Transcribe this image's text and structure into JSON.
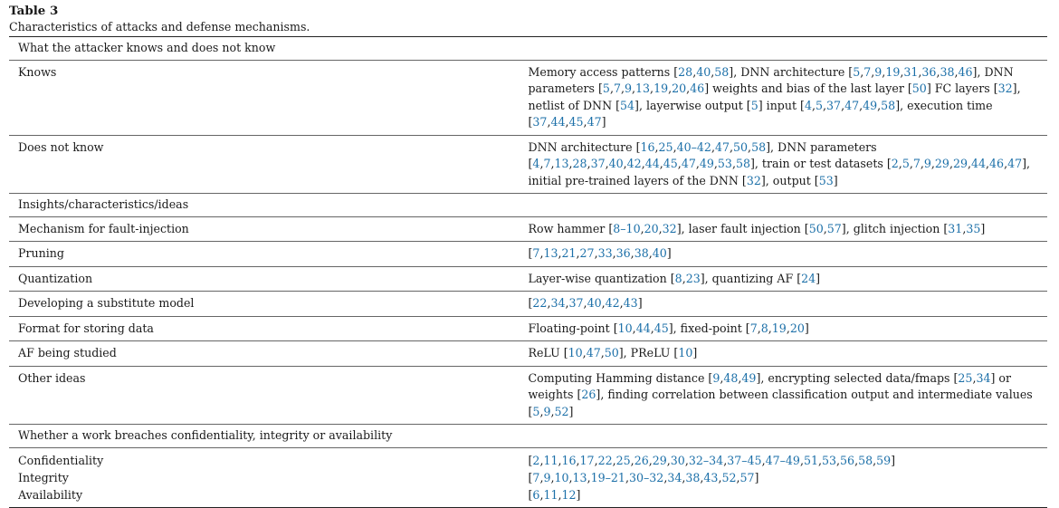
{
  "caption": {
    "title": "Table 3",
    "text": "Characteristics of attacks and defense mechanisms."
  },
  "colors": {
    "text": "#1a1a1a",
    "citation": "#1b6fa8",
    "rule": "#222222"
  },
  "sections": {
    "knowledge_header": "What the attacker knows and does not know",
    "insights_header": "Insights/characteristics/ideas",
    "breach_header": "Whether a work breaches confidentiality, integrity or availability"
  },
  "rows": [
    {
      "label": "Knows",
      "parts": [
        {
          "t": "Memory access patterns ["
        },
        {
          "r": "28"
        },
        {
          "t": ","
        },
        {
          "r": "40"
        },
        {
          "t": ","
        },
        {
          "r": "58"
        },
        {
          "t": "], DNN architecture ["
        },
        {
          "r": "5"
        },
        {
          "t": ","
        },
        {
          "r": "7"
        },
        {
          "t": ","
        },
        {
          "r": "9"
        },
        {
          "t": ","
        },
        {
          "r": "19"
        },
        {
          "t": ","
        },
        {
          "r": "31"
        },
        {
          "t": ","
        },
        {
          "r": "36"
        },
        {
          "t": ","
        },
        {
          "r": "38"
        },
        {
          "t": ","
        },
        {
          "r": "46"
        },
        {
          "t": "], DNN parameters ["
        },
        {
          "r": "5"
        },
        {
          "t": ","
        },
        {
          "r": "7"
        },
        {
          "t": ","
        },
        {
          "r": "9"
        },
        {
          "t": ","
        },
        {
          "r": "13"
        },
        {
          "t": ","
        },
        {
          "r": "19"
        },
        {
          "t": ","
        },
        {
          "r": "20"
        },
        {
          "t": ","
        },
        {
          "r": "46"
        },
        {
          "t": "] weights and bias of the last layer ["
        },
        {
          "r": "50"
        },
        {
          "t": "] FC layers ["
        },
        {
          "r": "32"
        },
        {
          "t": "], netlist of DNN ["
        },
        {
          "r": "54"
        },
        {
          "t": "], layerwise output ["
        },
        {
          "r": "5"
        },
        {
          "t": "] input ["
        },
        {
          "r": "4"
        },
        {
          "t": ","
        },
        {
          "r": "5"
        },
        {
          "t": ","
        },
        {
          "r": "37"
        },
        {
          "t": ","
        },
        {
          "r": "47"
        },
        {
          "t": ","
        },
        {
          "r": "49"
        },
        {
          "t": ","
        },
        {
          "r": "58"
        },
        {
          "t": "], execution time ["
        },
        {
          "r": "37"
        },
        {
          "t": ","
        },
        {
          "r": "44"
        },
        {
          "t": ","
        },
        {
          "r": "45"
        },
        {
          "t": ","
        },
        {
          "r": "47"
        },
        {
          "t": "]"
        }
      ]
    },
    {
      "label": "Does not know",
      "parts": [
        {
          "t": "DNN architecture ["
        },
        {
          "r": "16"
        },
        {
          "t": ","
        },
        {
          "r": "25"
        },
        {
          "t": ","
        },
        {
          "r": "40–42"
        },
        {
          "t": ","
        },
        {
          "r": "47"
        },
        {
          "t": ","
        },
        {
          "r": "50"
        },
        {
          "t": ","
        },
        {
          "r": "58"
        },
        {
          "t": "], DNN parameters ["
        },
        {
          "r": "4"
        },
        {
          "t": ","
        },
        {
          "r": "7"
        },
        {
          "t": ","
        },
        {
          "r": "13"
        },
        {
          "t": ","
        },
        {
          "r": "28"
        },
        {
          "t": ","
        },
        {
          "r": "37"
        },
        {
          "t": ","
        },
        {
          "r": "40"
        },
        {
          "t": ","
        },
        {
          "r": "42"
        },
        {
          "t": ","
        },
        {
          "r": "44"
        },
        {
          "t": ","
        },
        {
          "r": "45"
        },
        {
          "t": ","
        },
        {
          "r": "47"
        },
        {
          "t": ","
        },
        {
          "r": "49"
        },
        {
          "t": ","
        },
        {
          "r": "53"
        },
        {
          "t": ","
        },
        {
          "r": "58"
        },
        {
          "t": "], train or test datasets ["
        },
        {
          "r": "2"
        },
        {
          "t": ","
        },
        {
          "r": "5"
        },
        {
          "t": ","
        },
        {
          "r": "7"
        },
        {
          "t": ","
        },
        {
          "r": "9"
        },
        {
          "t": ","
        },
        {
          "r": "29"
        },
        {
          "t": ","
        },
        {
          "r": "29"
        },
        {
          "t": ","
        },
        {
          "r": "44"
        },
        {
          "t": ","
        },
        {
          "r": "46"
        },
        {
          "t": ","
        },
        {
          "r": "47"
        },
        {
          "t": "], initial pre-trained layers of the DNN ["
        },
        {
          "r": "32"
        },
        {
          "t": "], output ["
        },
        {
          "r": "53"
        },
        {
          "t": "]"
        }
      ]
    },
    {
      "label": "Mechanism for fault-injection",
      "parts": [
        {
          "t": "Row hammer ["
        },
        {
          "r": "8–10"
        },
        {
          "t": ","
        },
        {
          "r": "20"
        },
        {
          "t": ","
        },
        {
          "r": "32"
        },
        {
          "t": "], laser fault injection ["
        },
        {
          "r": "50"
        },
        {
          "t": ","
        },
        {
          "r": "57"
        },
        {
          "t": "], glitch injection ["
        },
        {
          "r": "31"
        },
        {
          "t": ","
        },
        {
          "r": "35"
        },
        {
          "t": "]"
        }
      ]
    },
    {
      "label": "Pruning",
      "parts": [
        {
          "t": "["
        },
        {
          "r": "7"
        },
        {
          "t": ","
        },
        {
          "r": "13"
        },
        {
          "t": ","
        },
        {
          "r": "21"
        },
        {
          "t": ","
        },
        {
          "r": "27"
        },
        {
          "t": ","
        },
        {
          "r": "33"
        },
        {
          "t": ","
        },
        {
          "r": "36"
        },
        {
          "t": ","
        },
        {
          "r": "38"
        },
        {
          "t": ","
        },
        {
          "r": "40"
        },
        {
          "t": "]"
        }
      ]
    },
    {
      "label": "Quantization",
      "parts": [
        {
          "t": "Layer-wise quantization ["
        },
        {
          "r": "8"
        },
        {
          "t": ","
        },
        {
          "r": "23"
        },
        {
          "t": "], quantizing AF ["
        },
        {
          "r": "24"
        },
        {
          "t": "]"
        }
      ]
    },
    {
      "label": "Developing a substitute model",
      "parts": [
        {
          "t": "["
        },
        {
          "r": "22"
        },
        {
          "t": ","
        },
        {
          "r": "34"
        },
        {
          "t": ","
        },
        {
          "r": "37"
        },
        {
          "t": ","
        },
        {
          "r": "40"
        },
        {
          "t": ","
        },
        {
          "r": "42"
        },
        {
          "t": ","
        },
        {
          "r": "43"
        },
        {
          "t": "]"
        }
      ]
    },
    {
      "label": "Format for storing data",
      "parts": [
        {
          "t": "Floating-point ["
        },
        {
          "r": "10"
        },
        {
          "t": ","
        },
        {
          "r": "44"
        },
        {
          "t": ","
        },
        {
          "r": "45"
        },
        {
          "t": "], fixed-point ["
        },
        {
          "r": "7"
        },
        {
          "t": ","
        },
        {
          "r": "8"
        },
        {
          "t": ","
        },
        {
          "r": "19"
        },
        {
          "t": ","
        },
        {
          "r": "20"
        },
        {
          "t": "]"
        }
      ]
    },
    {
      "label": "AF being studied",
      "parts": [
        {
          "t": "ReLU ["
        },
        {
          "r": "10"
        },
        {
          "t": ","
        },
        {
          "r": "47"
        },
        {
          "t": ","
        },
        {
          "r": "50"
        },
        {
          "t": "], PReLU ["
        },
        {
          "r": "10"
        },
        {
          "t": "]"
        }
      ]
    },
    {
      "label": "Other ideas",
      "parts": [
        {
          "t": "Computing Hamming distance ["
        },
        {
          "r": "9"
        },
        {
          "t": ","
        },
        {
          "r": "48"
        },
        {
          "t": ","
        },
        {
          "r": "49"
        },
        {
          "t": "], encrypting selected data/fmaps ["
        },
        {
          "r": "25"
        },
        {
          "t": ","
        },
        {
          "r": "34"
        },
        {
          "t": "] or weights ["
        },
        {
          "r": "26"
        },
        {
          "t": "], finding correlation between classification output and intermediate values ["
        },
        {
          "r": "5"
        },
        {
          "t": ","
        },
        {
          "r": "9"
        },
        {
          "t": ","
        },
        {
          "r": "52"
        },
        {
          "t": "]"
        }
      ]
    },
    {
      "label": "Confidentiality",
      "parts": [
        {
          "t": "["
        },
        {
          "r": "2"
        },
        {
          "t": ","
        },
        {
          "r": "11"
        },
        {
          "t": ","
        },
        {
          "r": "16"
        },
        {
          "t": ","
        },
        {
          "r": "17"
        },
        {
          "t": ","
        },
        {
          "r": "22"
        },
        {
          "t": ","
        },
        {
          "r": "25"
        },
        {
          "t": ","
        },
        {
          "r": "26"
        },
        {
          "t": ","
        },
        {
          "r": "29"
        },
        {
          "t": ","
        },
        {
          "r": "30"
        },
        {
          "t": ","
        },
        {
          "r": "32–34"
        },
        {
          "t": ","
        },
        {
          "r": "37–45"
        },
        {
          "t": ","
        },
        {
          "r": "47–49"
        },
        {
          "t": ","
        },
        {
          "r": "51"
        },
        {
          "t": ","
        },
        {
          "r": "53"
        },
        {
          "t": ","
        },
        {
          "r": "56"
        },
        {
          "t": ","
        },
        {
          "r": "58"
        },
        {
          "t": ","
        },
        {
          "r": "59"
        },
        {
          "t": "]"
        }
      ]
    },
    {
      "label": "Integrity",
      "parts": [
        {
          "t": "["
        },
        {
          "r": "7"
        },
        {
          "t": ","
        },
        {
          "r": "9"
        },
        {
          "t": ","
        },
        {
          "r": "10"
        },
        {
          "t": ","
        },
        {
          "r": "13"
        },
        {
          "t": ","
        },
        {
          "r": "19–21"
        },
        {
          "t": ","
        },
        {
          "r": "30–32"
        },
        {
          "t": ","
        },
        {
          "r": "34"
        },
        {
          "t": ","
        },
        {
          "r": "38"
        },
        {
          "t": ","
        },
        {
          "r": "43"
        },
        {
          "t": ","
        },
        {
          "r": "52"
        },
        {
          "t": ","
        },
        {
          "r": "57"
        },
        {
          "t": "]"
        }
      ]
    },
    {
      "label": "Availability",
      "parts": [
        {
          "t": "["
        },
        {
          "r": "6"
        },
        {
          "t": ","
        },
        {
          "r": "11"
        },
        {
          "t": ","
        },
        {
          "r": "12"
        },
        {
          "t": "]"
        }
      ]
    }
  ]
}
